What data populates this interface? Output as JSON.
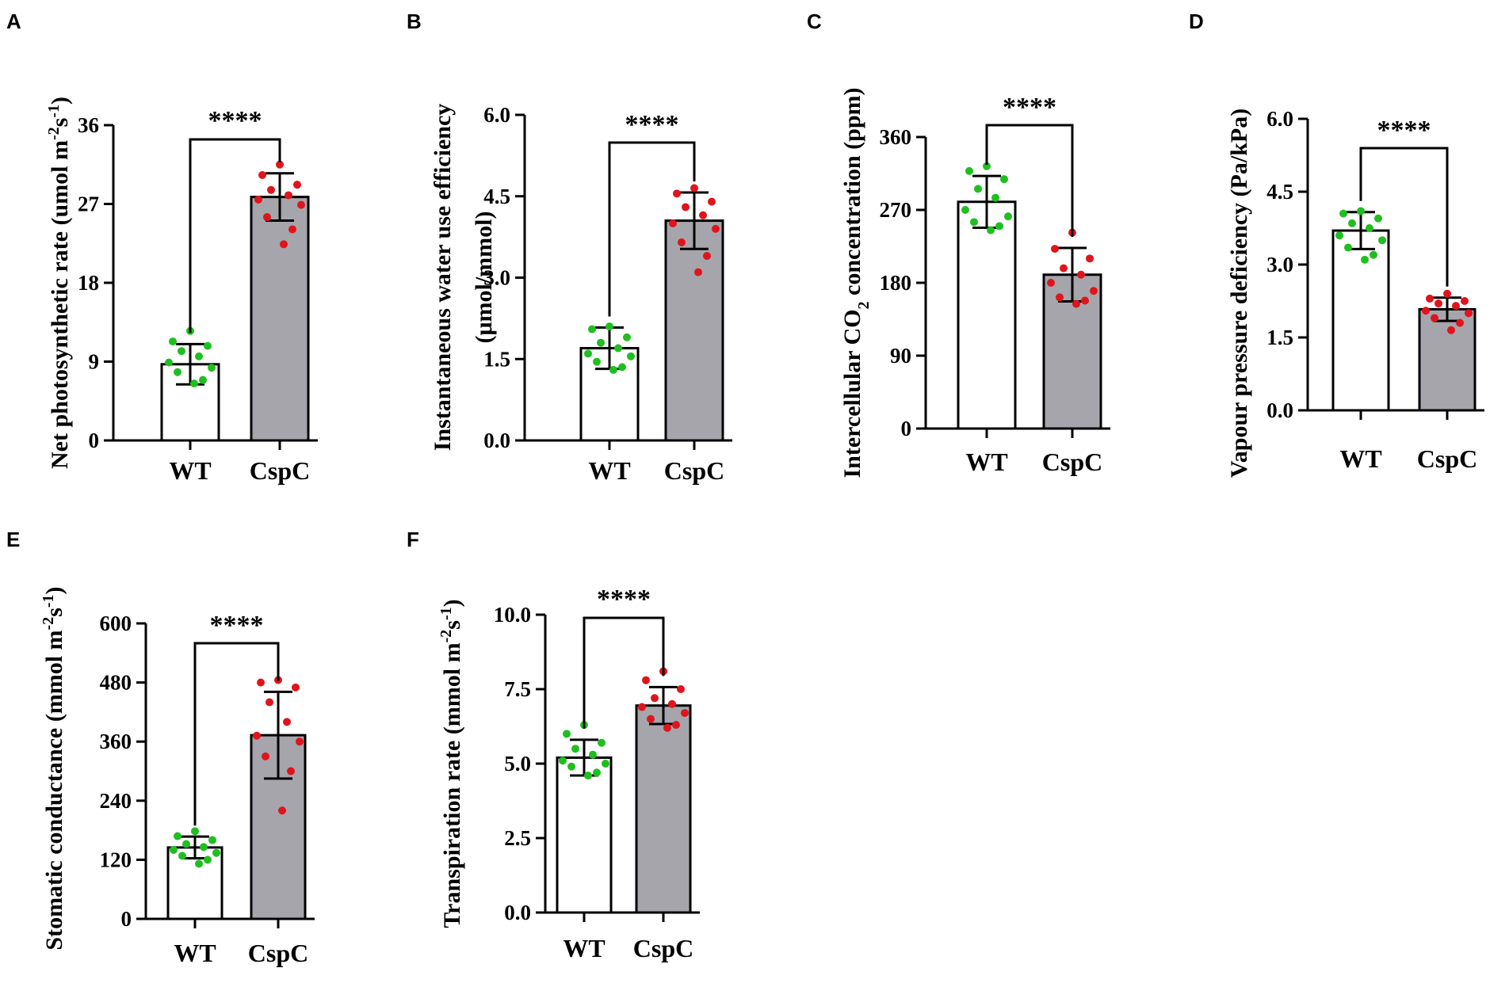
{
  "figure": {
    "panels": [
      "A",
      "B",
      "C",
      "D",
      "E",
      "F"
    ]
  },
  "chart_data": [
    {
      "panel": "A",
      "type": "bar",
      "ylabel": "Net photosynthetic rate (umol m-2s-1)",
      "ylabel_parts": [
        {
          "text": "Net photosynthetic rate (umol m",
          "sup": false
        },
        {
          "text": "-2",
          "sup": true
        },
        {
          "text": "s",
          "sup": false
        },
        {
          "text": "-1",
          "sup": true
        },
        {
          "text": ")",
          "sup": false
        }
      ],
      "categories": [
        "WT",
        "CspC"
      ],
      "ylim": [
        0,
        36
      ],
      "yticks": [
        0,
        9,
        18,
        27,
        36
      ],
      "ytick_labels": [
        "0",
        "9",
        "18",
        "27",
        "36"
      ],
      "means": [
        8.7,
        27.8
      ],
      "sd": [
        2.3,
        2.7
      ],
      "points": [
        [
          12.5,
          11.3,
          10.8,
          10.2,
          9.6,
          8.9,
          8.3,
          7.8,
          6.9,
          6.5
        ],
        [
          31.5,
          30.3,
          29.2,
          28.6,
          28.0,
          27.5,
          26.9,
          25.5,
          24.1,
          22.4
        ]
      ],
      "significance": "****"
    },
    {
      "panel": "B",
      "type": "bar",
      "ylabel_line1": "Instantaneous water use efficiency",
      "ylabel_line2": "(μmol/mmol)",
      "categories": [
        "WT",
        "CspC"
      ],
      "ylim": [
        0,
        6
      ],
      "yticks": [
        0,
        1.5,
        3,
        4.5,
        6
      ],
      "ytick_labels": [
        "0.0",
        "1.5",
        "3.0",
        "4.5",
        "6.0"
      ],
      "means": [
        1.7,
        4.05
      ],
      "sd": [
        0.38,
        0.52
      ],
      "points": [
        [
          2.1,
          2.05,
          1.9,
          1.8,
          1.7,
          1.6,
          1.55,
          1.45,
          1.35,
          1.3
        ],
        [
          4.65,
          4.55,
          4.4,
          4.3,
          4.15,
          4.0,
          3.9,
          3.65,
          3.4,
          3.1
        ]
      ],
      "significance": "****"
    },
    {
      "panel": "C",
      "type": "bar",
      "ylabel_parts": [
        {
          "text": "Intercellular CO",
          "sub": false
        },
        {
          "text": "2",
          "sub": true
        },
        {
          "text": " concentration (ppm)",
          "sub": false
        }
      ],
      "categories": [
        "WT",
        "CspC"
      ],
      "ylim": [
        0,
        360
      ],
      "yticks": [
        0,
        90,
        180,
        270,
        360
      ],
      "ytick_labels": [
        "0",
        "90",
        "180",
        "270",
        "360"
      ],
      "means": [
        280,
        190
      ],
      "sd": [
        32,
        33
      ],
      "points": [
        [
          324,
          318,
          308,
          296,
          285,
          270,
          262,
          255,
          250,
          245
        ],
        [
          242,
          222,
          210,
          198,
          190,
          180,
          170,
          162,
          158,
          154
        ]
      ],
      "significance": "****"
    },
    {
      "panel": "D",
      "type": "bar",
      "ylabel": "Vapour pressure deficiency (Pa/kPa)",
      "categories": [
        "WT",
        "CspC"
      ],
      "ylim": [
        0,
        6
      ],
      "yticks": [
        0,
        1.5,
        3,
        4.5,
        6
      ],
      "ytick_labels": [
        "0.0",
        "1.5",
        "3.0",
        "4.5",
        "6.0"
      ],
      "means": [
        3.7,
        2.08
      ],
      "sd": [
        0.38,
        0.24
      ],
      "points": [
        [
          4.1,
          4.05,
          3.95,
          3.85,
          3.75,
          3.6,
          3.5,
          3.35,
          3.2,
          3.1
        ],
        [
          2.4,
          2.3,
          2.25,
          2.2,
          2.15,
          2.05,
          2.0,
          1.9,
          1.8,
          1.65
        ]
      ],
      "significance": "****"
    },
    {
      "panel": "E",
      "type": "bar",
      "ylabel_parts": [
        {
          "text": "Stomatic conductance (mmol m",
          "sup": false
        },
        {
          "text": "-2",
          "sup": true
        },
        {
          "text": "s",
          "sup": false
        },
        {
          "text": "-1",
          "sup": true
        },
        {
          "text": ")",
          "sup": false
        }
      ],
      "categories": [
        "WT",
        "CspC"
      ],
      "ylim": [
        0,
        600
      ],
      "yticks": [
        0,
        120,
        240,
        360,
        480,
        600
      ],
      "ytick_labels": [
        "0",
        "120",
        "240",
        "360",
        "480",
        "600"
      ],
      "means": [
        145,
        373
      ],
      "sd": [
        22,
        88
      ],
      "points": [
        [
          178,
          168,
          160,
          152,
          146,
          140,
          134,
          128,
          120,
          112
        ],
        [
          485,
          480,
          470,
          440,
          400,
          372,
          360,
          330,
          300,
          220
        ]
      ],
      "significance": "****"
    },
    {
      "panel": "F",
      "type": "bar",
      "ylabel_parts": [
        {
          "text": "Transpiration rate (mmol m",
          "sup": false
        },
        {
          "text": "-2",
          "sup": true
        },
        {
          "text": "s",
          "sup": false
        },
        {
          "text": "-1",
          "sup": true
        },
        {
          "text": ")",
          "sup": false
        }
      ],
      "categories": [
        "WT",
        "CspC"
      ],
      "ylim": [
        0,
        10
      ],
      "yticks": [
        0,
        2.5,
        5,
        7.5,
        10
      ],
      "ytick_labels": [
        "0.0",
        "2.5",
        "5.0",
        "7.5",
        "10.0"
      ],
      "means": [
        5.2,
        6.95
      ],
      "sd": [
        0.6,
        0.62
      ],
      "points": [
        [
          6.3,
          6.0,
          5.7,
          5.5,
          5.3,
          5.1,
          5.0,
          4.9,
          4.7,
          4.6
        ],
        [
          8.1,
          7.8,
          7.5,
          7.2,
          7.0,
          6.9,
          6.7,
          6.5,
          6.3,
          6.2
        ]
      ],
      "significance": "****"
    }
  ],
  "colors": {
    "wt_fill": "#ffffff",
    "cspc_fill": "#a6a5ab",
    "wt_points": "#1fbf1f",
    "cspc_points": "#e0141c",
    "axis": "#000000"
  }
}
